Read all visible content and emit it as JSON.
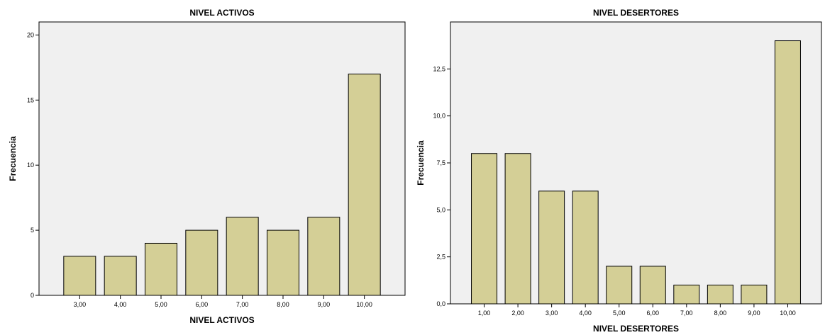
{
  "chart_data": [
    {
      "type": "bar",
      "title": "NIVEL ACTIVOS",
      "xlabel": "NIVEL ACTIVOS",
      "ylabel": "Frecuencia",
      "categories": [
        "3,00",
        "4,00",
        "5,00",
        "6,00",
        "7,00",
        "8,00",
        "9,00",
        "10,00"
      ],
      "values": [
        3,
        3,
        4,
        5,
        6,
        5,
        6,
        17
      ],
      "ylim": [
        0,
        21
      ],
      "yticks": [
        0,
        5,
        10,
        15,
        20
      ],
      "ytick_labels": [
        "0",
        "5",
        "10",
        "15",
        "20"
      ],
      "grid": false,
      "colors": {
        "bar": "#d4cf96",
        "plot_bg": "#f0f0f0",
        "edge": "#000000"
      }
    },
    {
      "type": "bar",
      "title": "NIVEL  DESERTORES",
      "xlabel": "NIVEL  DESERTORES",
      "ylabel": "Frecuencia",
      "categories": [
        "1,00",
        "2,00",
        "3,00",
        "4,00",
        "5,00",
        "6,00",
        "7,00",
        "8,00",
        "9,00",
        "10,00"
      ],
      "values": [
        8,
        8,
        6,
        6,
        2,
        2,
        1,
        1,
        1,
        14
      ],
      "ylim": [
        0,
        15
      ],
      "yticks": [
        0,
        2.5,
        5,
        7.5,
        10,
        12.5
      ],
      "ytick_labels": [
        "0,0",
        "2,5",
        "5,0",
        "7,5",
        "10,0",
        "12,5"
      ],
      "grid": false,
      "colors": {
        "bar": "#d4cf96",
        "plot_bg": "#f0f0f0",
        "edge": "#000000"
      }
    }
  ]
}
